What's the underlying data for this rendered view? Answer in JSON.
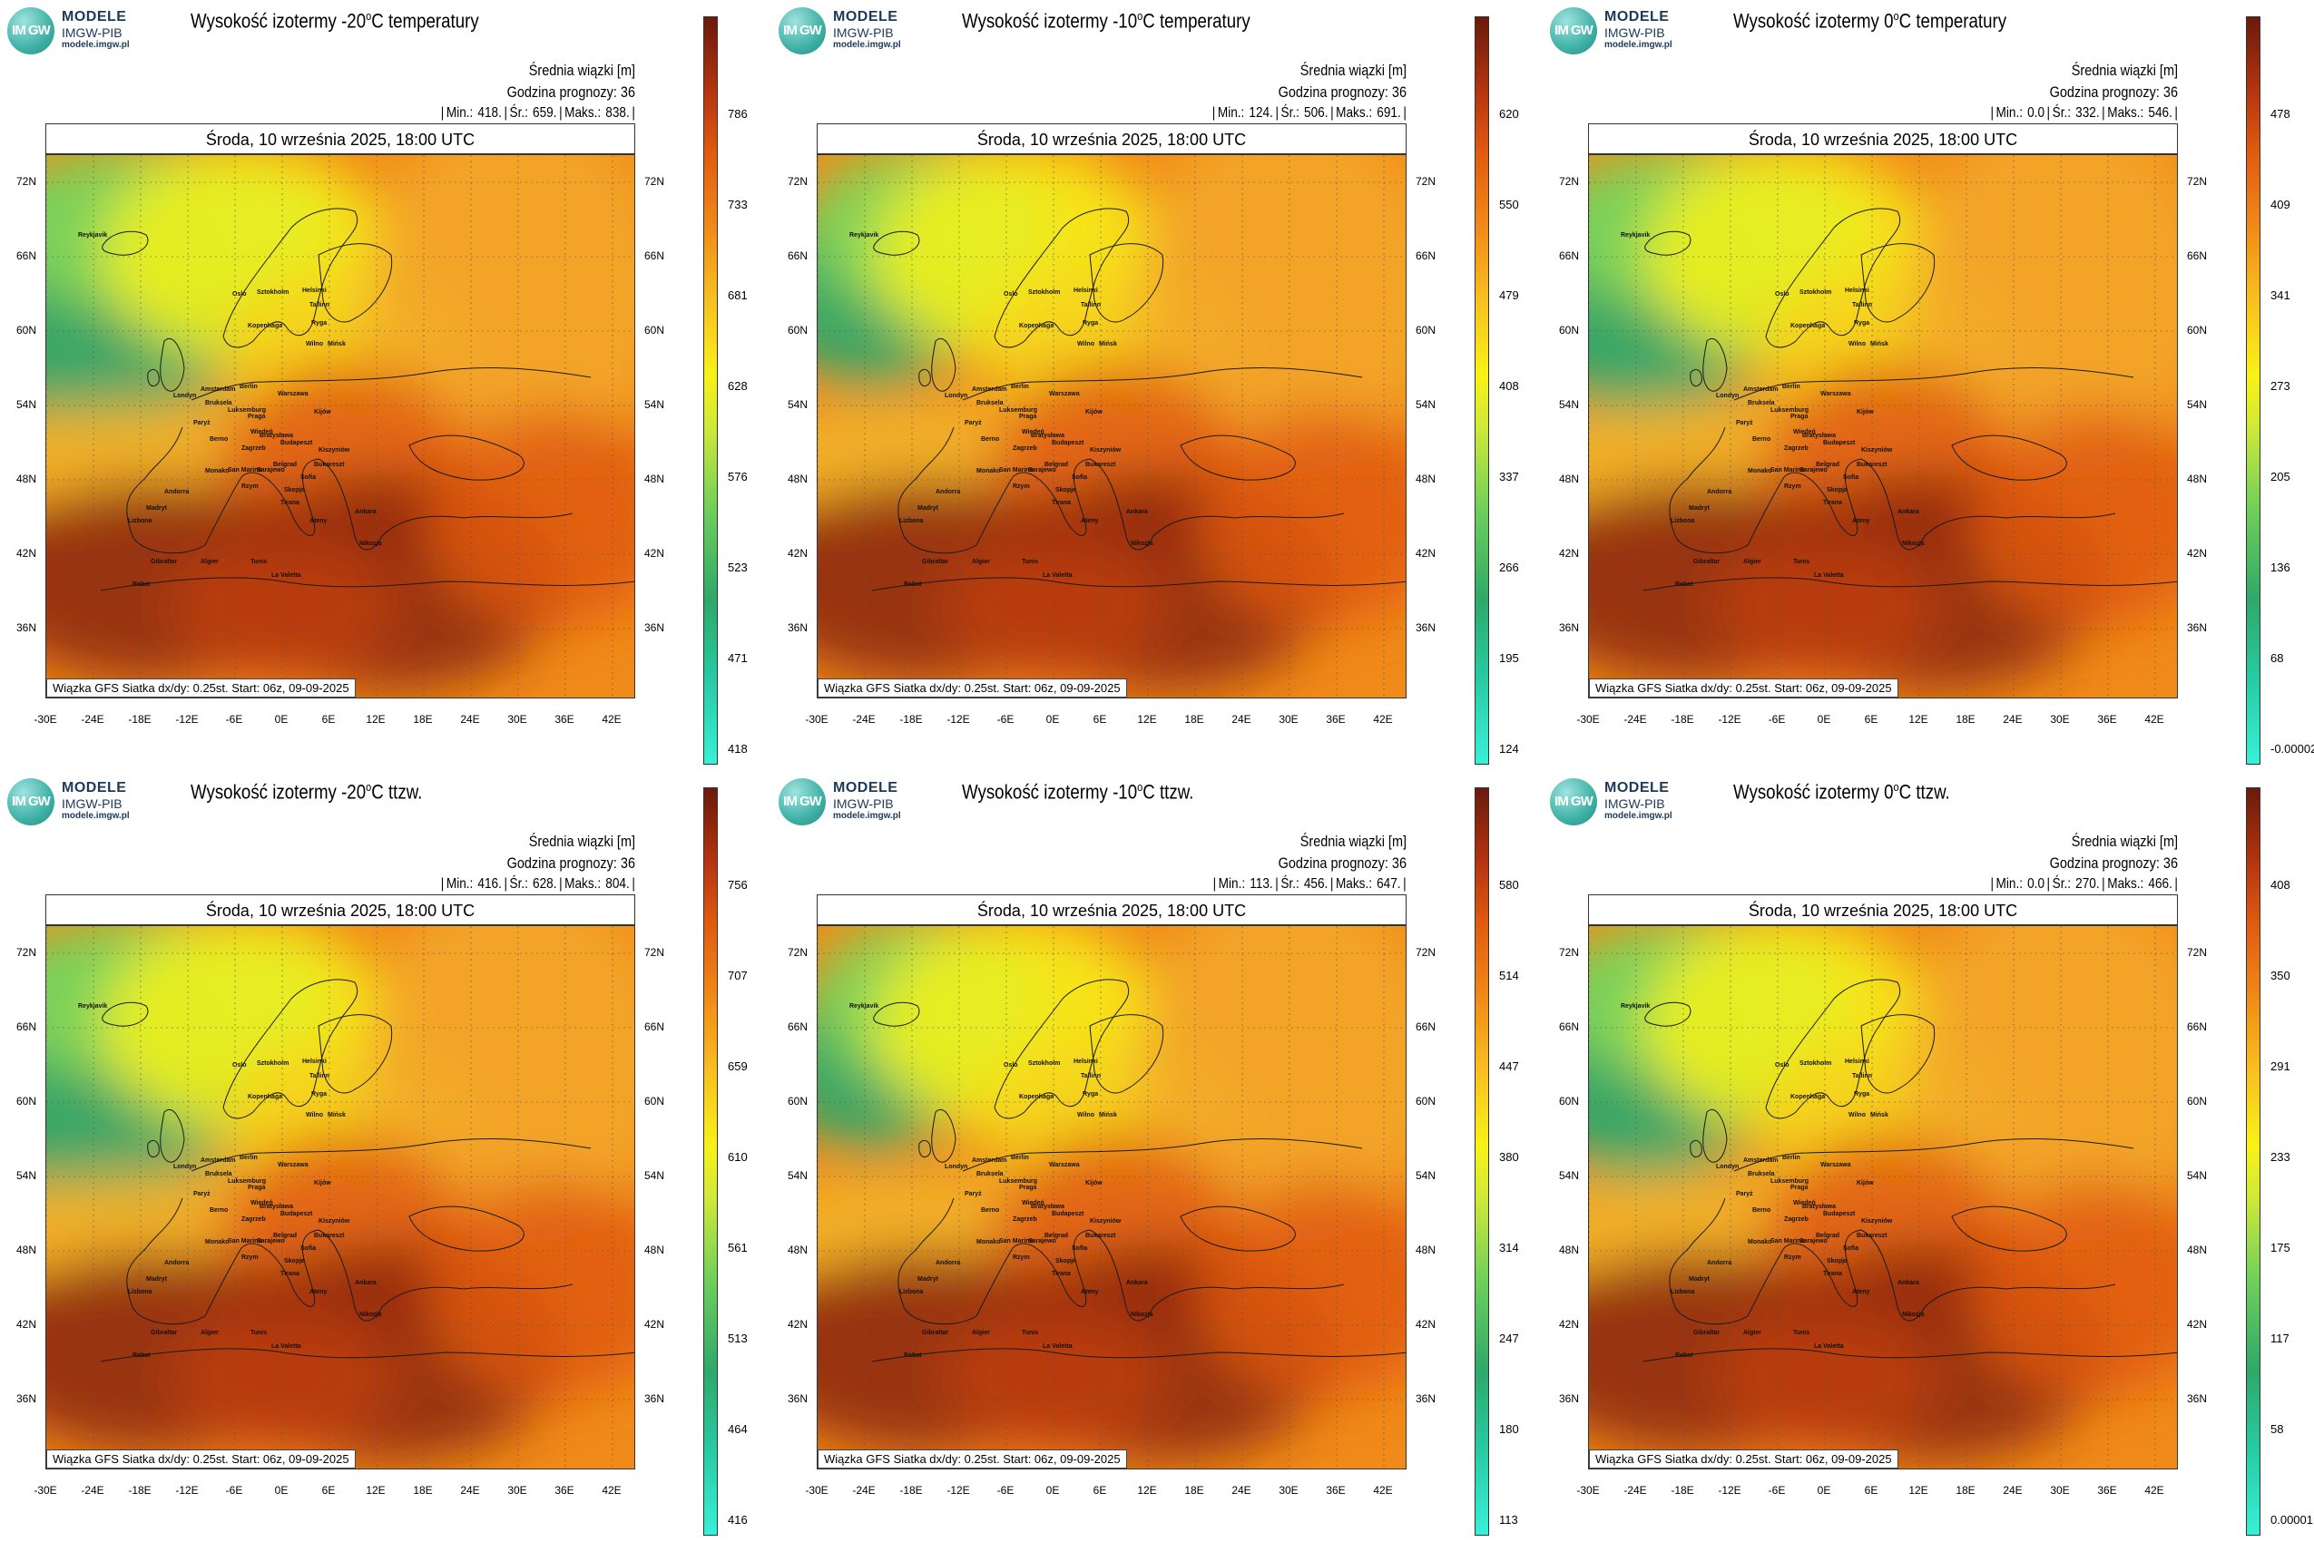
{
  "logo": {
    "circle_text": "IM GW",
    "line1": "MODELE",
    "line2": "IMGW-PIB",
    "line3": "modele.imgw.pl"
  },
  "common": {
    "subtitle": "Średnia wiązki [m]",
    "forecast_hour": "Godzina prognozy: 36",
    "date": "Środa, 10 września 2025, 18:00 UTC",
    "source": "Wiązka GFS Siatka dx/dy: 0.25st. Start: 06z, 09-09-2025",
    "lat_labels": [
      "72N",
      "66N",
      "60N",
      "54N",
      "48N",
      "42N",
      "36N"
    ],
    "lon_labels": [
      "-30E",
      "-24E",
      "-18E",
      "-12E",
      "-6E",
      "0E",
      "6E",
      "12E",
      "18E",
      "24E",
      "30E",
      "36E",
      "42E"
    ],
    "cities": [
      "Oslo",
      "Sztokholm",
      "Helsinki",
      "Tallinn",
      "Ryga",
      "Kopenhaga",
      "Wilno",
      "Mińsk",
      "Amsterdam",
      "Berlin",
      "Warszawa",
      "Londyn",
      "Bruksela",
      "Luksemburg",
      "Praga",
      "Kijów",
      "Paryż",
      "Wiedeń",
      "Bratysława",
      "Budapeszt",
      "Berno",
      "Kiszyniów",
      "Zagrzeb",
      "Belgrad",
      "Bukareszt",
      "Monako",
      "San Marino",
      "Sarajewo",
      "Sofia",
      "Rzym",
      "Skopje",
      "Andorra",
      "Madryt",
      "Ankara",
      "Lizbona",
      "Tirana",
      "Ateny",
      "Gibraltar",
      "Algier",
      "Tunis",
      "La Valetta",
      "Nikozja",
      "Rabat",
      "Reykjavik"
    ]
  },
  "panels": [
    {
      "title_pre": "Wysokość izotermy -20",
      "title_post": "C temperatury",
      "sup": "o",
      "min": "418.",
      "avg": "659.",
      "max": "838.",
      "scale": [
        "786",
        "733",
        "681",
        "628",
        "576",
        "523",
        "471",
        "418"
      ]
    },
    {
      "title_pre": "Wysokość izotermy -10",
      "title_post": "C temperatury",
      "sup": "o",
      "min": "124.",
      "avg": "506.",
      "max": "691.",
      "scale": [
        "620",
        "550",
        "479",
        "408",
        "337",
        "266",
        "195",
        "124"
      ]
    },
    {
      "title_pre": "Wysokość izotermy 0",
      "title_post": "C temperatury",
      "sup": "o",
      "min": "0.0",
      "avg": "332.",
      "max": "546.",
      "scale": [
        "478",
        "409",
        "341",
        "273",
        "205",
        "136",
        "68",
        "-0.00002"
      ]
    },
    {
      "title_pre": "Wysokość izotermy -20",
      "title_post": "C ttzw.",
      "sup": "o",
      "min": "416.",
      "avg": "628.",
      "max": "804.",
      "scale": [
        "756",
        "707",
        "659",
        "610",
        "561",
        "513",
        "464",
        "416"
      ]
    },
    {
      "title_pre": "Wysokość izotermy -10",
      "title_post": "C ttzw.",
      "sup": "o",
      "min": "113.",
      "avg": "456.",
      "max": "647.",
      "scale": [
        "580",
        "514",
        "447",
        "380",
        "314",
        "247",
        "180",
        "113"
      ]
    },
    {
      "title_pre": "Wysokość izotermy 0",
      "title_post": "C ttzw.",
      "sup": "o",
      "min": "0.0",
      "avg": "270.",
      "max": "466.",
      "scale": [
        "408",
        "350",
        "291",
        "233",
        "175",
        "117",
        "58",
        "0.00001"
      ]
    }
  ],
  "stat_labels": {
    "min": "Min.:",
    "avg": "Śr.:",
    "max": "Maks.:"
  },
  "colors": {
    "green": "#2fa86a",
    "yellow": "#f8f218",
    "orange": "#f08a18",
    "red": "#e05a10",
    "darkred": "#8a2410"
  }
}
